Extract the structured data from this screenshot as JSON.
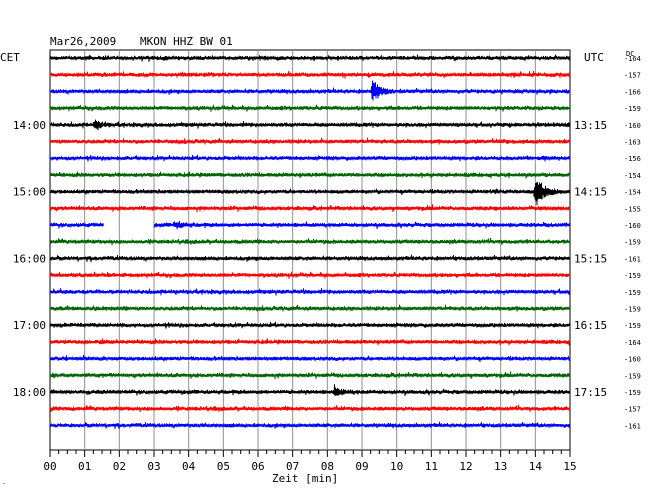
{
  "chart_data": {
    "type": "line",
    "title": "Mar26,2009",
    "station": "MKON HHZ BW 01",
    "left_timezone": "CET",
    "right_timezone": "UTC",
    "right_top_label": "DC",
    "xlabel": "Zeit [min]",
    "x_ticks": [
      "00",
      "01",
      "02",
      "03",
      "04",
      "05",
      "06",
      "07",
      "08",
      "09",
      "10",
      "11",
      "12",
      "13",
      "14",
      "15"
    ],
    "xlim": [
      0,
      15
    ],
    "left_hour_labels": [
      {
        "row": 4,
        "text": "14:00"
      },
      {
        "row": 8,
        "text": "15:00"
      },
      {
        "row": 12,
        "text": "16:00"
      },
      {
        "row": 16,
        "text": "17:00"
      },
      {
        "row": 20,
        "text": "18:00"
      }
    ],
    "right_hour_labels": [
      {
        "row": 4,
        "text": "13:15"
      },
      {
        "row": 8,
        "text": "14:15"
      },
      {
        "row": 12,
        "text": "15:15"
      },
      {
        "row": 16,
        "text": "16:15"
      },
      {
        "row": 20,
        "text": "17:15"
      }
    ],
    "row_colors": [
      "#000000",
      "#ff0000",
      "#0000ff",
      "#006400"
    ],
    "dc_offsets": [
      "-164",
      "-157",
      "-166",
      "-159",
      "-160",
      "-163",
      "-156",
      "-154",
      "-154",
      "-155",
      "-160",
      "-159",
      "-161",
      "-159",
      "-159",
      "-159",
      "-159",
      "-164",
      "-160",
      "-159",
      "-159",
      "-157",
      "-161"
    ],
    "events": [
      {
        "row": 2,
        "minute": 9.3,
        "amplitude": 1.0
      },
      {
        "row": 8,
        "minute": 14.0,
        "amplitude": 1.6
      },
      {
        "row": 4,
        "minute": 1.3,
        "amplitude": 0.35
      },
      {
        "row": 20,
        "minute": 8.2,
        "amplitude": 0.4
      },
      {
        "row": 10,
        "minute": 3.6,
        "amplitude": 0.3
      }
    ],
    "gaps": [
      {
        "row": 10,
        "start_minute": 1.55,
        "end_minute": 3.0
      }
    ],
    "footer_mark": "·"
  }
}
